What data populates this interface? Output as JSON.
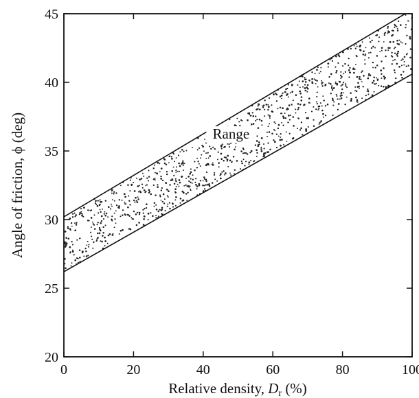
{
  "chart_data": {
    "type": "area",
    "xlabel_prefix": "Relative density, ",
    "xlabel_var": "D",
    "xlabel_sub": "r",
    "xlabel_suffix": " (%)",
    "ylabel": "Angle of friction, ϕ (deg)",
    "xlim": [
      0,
      100
    ],
    "ylim": [
      20,
      45
    ],
    "xticks": [
      0,
      20,
      40,
      60,
      80,
      100
    ],
    "yticks": [
      20,
      25,
      30,
      35,
      40,
      45
    ],
    "grid": false,
    "series": [
      {
        "name": "Range",
        "upper": {
          "x": [
            0,
            100
          ],
          "y": [
            30.2,
            45.3
          ]
        },
        "lower": {
          "x": [
            0,
            100
          ],
          "y": [
            26.2,
            40.6
          ]
        }
      }
    ],
    "annotations": [
      {
        "text": "Range",
        "x": 48,
        "y": 35.9
      }
    ],
    "fill_style": "stippled",
    "colors": {
      "line": "#111111",
      "dots": "#222222"
    }
  }
}
